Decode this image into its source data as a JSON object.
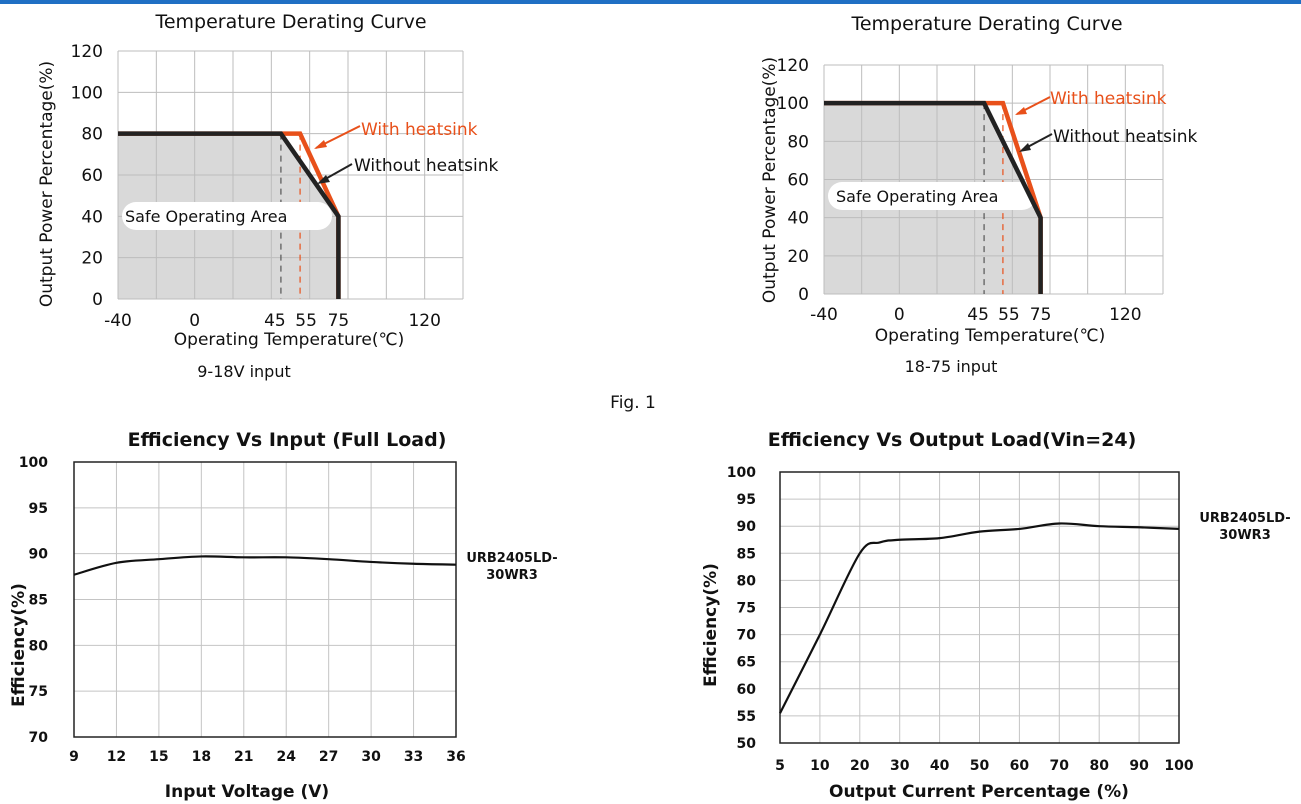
{
  "figure_caption": "Fig. 1",
  "colors": {
    "accent": "#1f6fc4",
    "with_heatsink": "#e8501a",
    "without_heatsink": "#222222",
    "safe_area_fill": "#d9d9d9"
  },
  "chart_data": [
    {
      "id": "derating-9-18",
      "type": "line",
      "title": "Temperature Derating Curve",
      "xlabel": "Operating Temperature(℃)",
      "ylabel": "Output Power Percentage(%)",
      "caption": "9-18V input",
      "xlim": [
        -40,
        140
      ],
      "ylim": [
        0,
        120
      ],
      "xticks": [
        -40,
        0,
        45,
        55,
        75,
        120
      ],
      "xtick_labels": [
        "-40",
        "0",
        "45",
        "55",
        "75",
        "120"
      ],
      "yticks": [
        0,
        20,
        40,
        60,
        80,
        100,
        120
      ],
      "ytick_labels": [
        "0",
        "20",
        "40",
        "60",
        "80",
        "100",
        "120"
      ],
      "grid": true,
      "area_label": "Safe Operating Area",
      "series": [
        {
          "name": "With heatsink",
          "x": [
            -40,
            55,
            75,
            75
          ],
          "y": [
            80,
            80,
            40,
            0
          ]
        },
        {
          "name": "Without heatsink",
          "x": [
            -40,
            45,
            75,
            75
          ],
          "y": [
            80,
            80,
            40,
            0
          ]
        }
      ]
    },
    {
      "id": "derating-18-75",
      "type": "line",
      "title": "Temperature Derating Curve",
      "xlabel": "Operating Temperature(℃)",
      "ylabel": "Output Power Percentage(%)",
      "caption": "18-75 input",
      "xlim": [
        -40,
        140
      ],
      "ylim": [
        0,
        120
      ],
      "xticks": [
        -40,
        0,
        45,
        55,
        75,
        120
      ],
      "xtick_labels": [
        "-40",
        "0",
        "45",
        "55",
        "75",
        "120"
      ],
      "yticks": [
        0,
        20,
        40,
        60,
        80,
        100,
        120
      ],
      "ytick_labels": [
        "0",
        "20",
        "40",
        "60",
        "80",
        "100",
        "120"
      ],
      "grid": true,
      "area_label": "Safe Operating Area",
      "series": [
        {
          "name": "With heatsink",
          "x": [
            -40,
            55,
            75,
            75
          ],
          "y": [
            100,
            100,
            40,
            0
          ]
        },
        {
          "name": "Without heatsink",
          "x": [
            -40,
            45,
            75,
            75
          ],
          "y": [
            100,
            100,
            40,
            0
          ]
        }
      ]
    },
    {
      "id": "eff-vs-input",
      "type": "line",
      "title": "Efficiency Vs Input (Full Load)",
      "xlabel": "Input Voltage (V)",
      "ylabel": "Efficiency(%)",
      "xlim": [
        9,
        36
      ],
      "ylim": [
        70,
        100
      ],
      "xticks": [
        9,
        12,
        15,
        18,
        21,
        24,
        27,
        30,
        33,
        36
      ],
      "xtick_labels": [
        "9",
        "12",
        "15",
        "18",
        "21",
        "24",
        "27",
        "30",
        "33",
        "36"
      ],
      "yticks": [
        70,
        75,
        80,
        85,
        90,
        95,
        100
      ],
      "ytick_labels": [
        "70",
        "75",
        "80",
        "85",
        "90",
        "95",
        "100"
      ],
      "grid": true,
      "legend_text": "URB2405LD-30WR3",
      "series": [
        {
          "name": "URB2405LD-30WR3",
          "x": [
            9,
            12,
            15,
            18,
            21,
            24,
            27,
            30,
            33,
            36
          ],
          "y": [
            87.7,
            89.0,
            89.4,
            89.7,
            89.6,
            89.6,
            89.4,
            89.1,
            88.9,
            88.8
          ]
        }
      ]
    },
    {
      "id": "eff-vs-load",
      "type": "line",
      "title": "Efficiency Vs Output Load(Vin=24)",
      "xlabel": "Output Current  Percentage (%)",
      "ylabel": "Efficiency(%)",
      "xlim": [
        5,
        100
      ],
      "ylim": [
        50,
        100
      ],
      "xticks": [
        5,
        10,
        20,
        30,
        40,
        50,
        60,
        70,
        80,
        90,
        100
      ],
      "xtick_labels": [
        "5",
        "10",
        "20",
        "30",
        "40",
        "50",
        "60",
        "70",
        "80",
        "90",
        "100"
      ],
      "yticks": [
        50,
        55,
        60,
        65,
        70,
        75,
        80,
        85,
        90,
        95,
        100
      ],
      "ytick_labels": [
        "50",
        "55",
        "60",
        "65",
        "70",
        "75",
        "80",
        "85",
        "90",
        "95",
        "100"
      ],
      "grid": true,
      "legend_text": "URB2405LD-30WR3",
      "series": [
        {
          "name": "URB2405LD-30WR3",
          "x": [
            5,
            10,
            20,
            25,
            30,
            40,
            50,
            60,
            70,
            80,
            90,
            100
          ],
          "y": [
            55.5,
            70,
            85,
            87,
            87.5,
            87.8,
            89,
            89.5,
            90.5,
            90,
            89.8,
            89.5
          ]
        }
      ]
    }
  ]
}
